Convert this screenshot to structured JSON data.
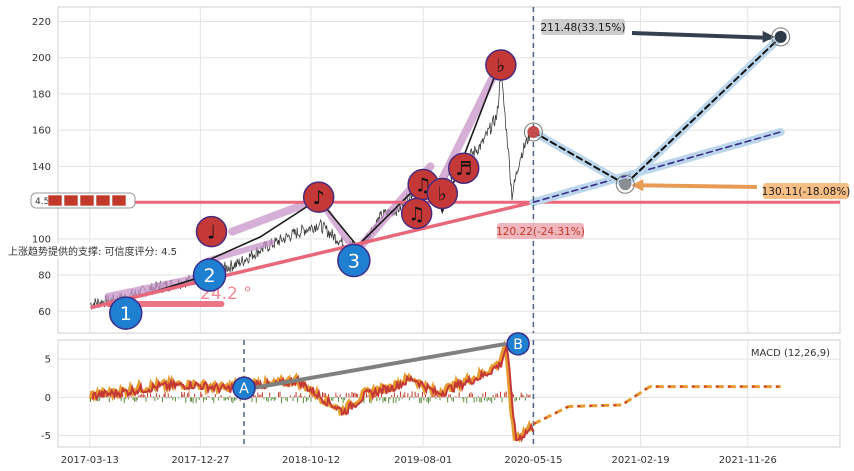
{
  "chart_data": [
    {
      "type": "line",
      "panel": "price",
      "y_ticks": [
        60,
        80,
        100,
        120,
        140,
        160,
        180,
        200,
        220
      ],
      "ylim": [
        48,
        228
      ],
      "xlim": [
        "2016-12-20",
        "2022-07-25"
      ],
      "grid": true,
      "series": [
        {
          "values_xy": [
            [
              "2017-03-15",
              64
            ],
            [
              "2017-06-01",
              67
            ],
            [
              "2017-09-01",
              73
            ],
            [
              "2017-12-01",
              77
            ],
            [
              "2018-02-01",
              82
            ],
            [
              "2018-04-01",
              86
            ],
            [
              "2018-06-01",
              94
            ],
            [
              "2018-09-01",
              103
            ],
            [
              "2018-11-01",
              108
            ],
            [
              "2019-01-01",
              98
            ],
            [
              "2019-02-15",
              95
            ],
            [
              "2019-04-15",
              113
            ],
            [
              "2019-06-01",
              117
            ],
            [
              "2019-07-15",
              130
            ],
            [
              "2019-09-01",
              124
            ],
            [
              "2019-11-01",
              140
            ],
            [
              "2020-01-01",
              152
            ],
            [
              "2020-02-10",
              168
            ],
            [
              "2020-02-20",
              192
            ],
            [
              "2020-03-10",
              150
            ],
            [
              "2020-03-20",
              124
            ],
            [
              "2020-04-10",
              145
            ],
            [
              "2020-05-10",
              160
            ]
          ]
        }
      ],
      "level_lines": [
        120.22
      ],
      "annotations": [
        {
          "label": "211.48(33.15%)",
          "date": "2022-02-20",
          "value": 211.48
        },
        {
          "label": "130.11(-18.08%)",
          "date": "2021-01-10",
          "value": 130.11
        },
        {
          "label": "120.22(-24.31%)",
          "date": "2020-05-15",
          "value": 120.22
        }
      ],
      "angle_label": "24.2 °",
      "support_box_label": "4.5",
      "support_label": "上涨趋势提供的支撑: 可信度评分: 4.5",
      "wave_labels": [
        "1",
        "2",
        "3"
      ],
      "note_glyphs": [
        "♩",
        "♪",
        "♫",
        "♫",
        "♬",
        "♭",
        "♭"
      ]
    },
    {
      "type": "line",
      "panel": "macd",
      "title": "MACD (12,26,9)",
      "y_ticks": [
        -5,
        0,
        5
      ],
      "ylim": [
        -6.5,
        7.5
      ],
      "x_ticks": [
        "2017-03-13",
        "2017-12-27",
        "2018-10-12",
        "2019-08-01",
        "2020-05-15",
        "2021-02-19",
        "2021-11-26"
      ],
      "markers": [
        "A",
        "B"
      ],
      "series": [
        {
          "values_xy": [
            [
              "2017-03-15",
              0.3
            ],
            [
              "2017-06-01",
              0.8
            ],
            [
              "2017-09-01",
              1.5
            ],
            [
              "2017-12-01",
              1.8
            ],
            [
              "2018-03-01",
              1.2
            ],
            [
              "2018-05-01",
              2.0
            ],
            [
              "2018-07-01",
              1.6
            ],
            [
              "2018-09-01",
              2.4
            ],
            [
              "2018-11-01",
              0.2
            ],
            [
              "2019-01-01",
              -1.8
            ],
            [
              "2019-03-01",
              0.5
            ],
            [
              "2019-05-01",
              1.3
            ],
            [
              "2019-07-01",
              2.6
            ],
            [
              "2019-09-01",
              0.6
            ],
            [
              "2019-11-01",
              1.8
            ],
            [
              "2020-01-01",
              3.0
            ],
            [
              "2020-02-15",
              4.5
            ],
            [
              "2020-03-01",
              7.0
            ],
            [
              "2020-03-25",
              -5.5
            ],
            [
              "2020-05-15",
              -3.5
            ],
            [
              "2020-08-15",
              -1.2
            ],
            [
              "2021-01-01",
              -1.0
            ],
            [
              "2021-03-15",
              1.4
            ],
            [
              "2022-02-20",
              1.4
            ]
          ]
        }
      ]
    }
  ]
}
